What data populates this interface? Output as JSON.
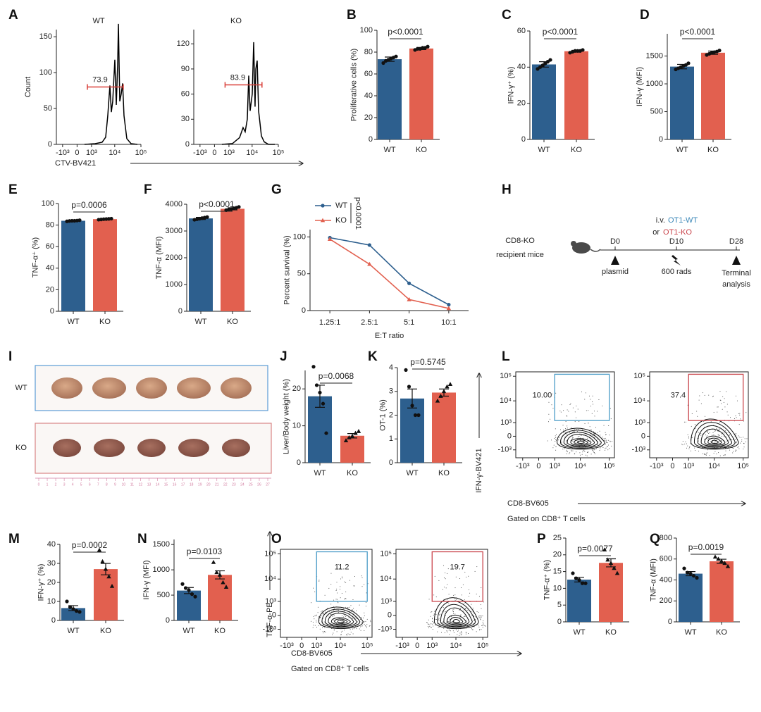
{
  "chart_data": [
    {
      "panel": "A",
      "type": "flow-histogram",
      "ylabel": "Count",
      "xlabel": "CTV-BV421",
      "color": "#000000",
      "gate_color": "#d9403a",
      "xlim": [
        -2000,
        100000
      ],
      "xticks": [
        {
          "value": -1000,
          "label": "-10³"
        },
        0,
        {
          "value": 1000,
          "label": "10³"
        },
        {
          "value": 10000,
          "label": "10⁴"
        },
        {
          "value": 100000,
          "label": "10⁵"
        }
      ],
      "plots": [
        {
          "title": "WT",
          "x": [
            360,
            1500,
            3100,
            4350,
            5300,
            6450,
            7350,
            8350,
            10100,
            11500,
            13000,
            13900,
            15700,
            17800,
            20200,
            22800,
            29200,
            42400,
            73600
          ],
          "values": [
            0,
            1,
            3,
            10,
            40,
            82,
            45,
            60,
            118,
            55,
            110,
            168,
            60,
            70,
            85,
            40,
            8,
            1,
            0
          ],
          "ylim": [
            0,
            160
          ],
          "yticks": [
            0,
            50,
            100,
            150
          ],
          "gate_x": [
            575,
            21400
          ],
          "gate_y": 80,
          "gate_percent": 73.9
        },
        {
          "title": "KO",
          "x": [
            360,
            1500,
            3100,
            4350,
            5300,
            6450,
            7350,
            8350,
            10100,
            11500,
            13000,
            13900,
            15700,
            17800,
            20200,
            22800,
            29200,
            42400,
            73600
          ],
          "values": [
            0,
            1,
            8,
            20,
            15,
            30,
            82,
            40,
            60,
            122,
            45,
            90,
            100,
            40,
            25,
            10,
            3,
            0,
            0
          ],
          "ylim": [
            0,
            137
          ],
          "yticks": [
            0,
            30,
            60,
            90,
            120
          ],
          "gate_x": [
            600,
            24000
          ],
          "gate_y": 71,
          "gate_percent": 83.9
        }
      ]
    },
    {
      "panel": "B",
      "type": "bar",
      "ylabel": "Proliferative cells (%)",
      "annotation": "p<0.0001",
      "categories": [
        "WT",
        "KO"
      ],
      "values": [
        73.5,
        83.3
      ],
      "errors": [
        2,
        1
      ],
      "points": [
        [
          70,
          72,
          73,
          74,
          75,
          76
        ],
        [
          82,
          83,
          83,
          84,
          84,
          85
        ]
      ],
      "colors": [
        "#2d5f8e",
        "#e2604f"
      ],
      "markers": [
        "circle",
        "circle"
      ],
      "ylim": [
        0,
        100
      ],
      "yticks": [
        0,
        20,
        40,
        60,
        80,
        100
      ]
    },
    {
      "panel": "C",
      "type": "bar",
      "ylabel": "IFN-γ⁺ (%)",
      "annotation": "p<0.0001",
      "categories": [
        "WT",
        "KO"
      ],
      "values": [
        41.5,
        48.8
      ],
      "errors": [
        1.5,
        0.5
      ],
      "points": [
        [
          39,
          40,
          41,
          42,
          43,
          44
        ],
        [
          48,
          48.5,
          49,
          49,
          49,
          49.5
        ]
      ],
      "colors": [
        "#2d5f8e",
        "#e2604f"
      ],
      "markers": [
        "circle",
        "circle"
      ],
      "ylim": [
        0,
        60
      ],
      "yticks": [
        0,
        20,
        40,
        60
      ]
    },
    {
      "panel": "D",
      "type": "bar",
      "ylabel": "IFN-γ (MFI)",
      "annotation": "p<0.0001",
      "categories": [
        "WT",
        "KO"
      ],
      "values": [
        1310,
        1560
      ],
      "errors": [
        40,
        30
      ],
      "points": [
        [
          1260,
          1280,
          1300,
          1320,
          1340,
          1370
        ],
        [
          1520,
          1540,
          1560,
          1570,
          1580,
          1600
        ]
      ],
      "colors": [
        "#2d5f8e",
        "#e2604f"
      ],
      "markers": [
        "circle",
        "circle"
      ],
      "ylim": [
        0,
        1900
      ],
      "yticks": [
        0,
        500,
        1000,
        1500
      ]
    },
    {
      "panel": "E",
      "type": "bar",
      "ylabel": "TNF-α⁺ (%)",
      "annotation": "p=0.0006",
      "categories": [
        "WT",
        "KO"
      ],
      "values": [
        84,
        85.5
      ],
      "errors": [
        0.5,
        0.5
      ],
      "points": [
        [
          83.5,
          83.8,
          84,
          84,
          84.2,
          84.5
        ],
        [
          85,
          85.2,
          85.5,
          85.6,
          85.8,
          86
        ]
      ],
      "colors": [
        "#2d5f8e",
        "#e2604f"
      ],
      "markers": [
        "circle",
        "circle"
      ],
      "ylim": [
        0,
        100
      ],
      "yticks": [
        0,
        20,
        40,
        60,
        80,
        100
      ]
    },
    {
      "panel": "F",
      "type": "bar",
      "ylabel": "TNF-α (MFI)",
      "annotation": "p<0.0001",
      "categories": [
        "WT",
        "KO"
      ],
      "values": [
        3470,
        3830
      ],
      "errors": [
        40,
        40
      ],
      "points": [
        [
          3420,
          3440,
          3460,
          3480,
          3500,
          3520
        ],
        [
          3780,
          3800,
          3820,
          3850,
          3870,
          3900
        ]
      ],
      "colors": [
        "#2d5f8e",
        "#e2604f"
      ],
      "markers": [
        "circle",
        "circle"
      ],
      "ylim": [
        0,
        4000
      ],
      "yticks": [
        0,
        1000,
        2000,
        3000,
        4000
      ]
    },
    {
      "panel": "G",
      "type": "line",
      "ylabel": "Percent survival (%)",
      "xlabel": "E:T ratio",
      "annotation": "p<0.0001",
      "categories": [
        "1.25:1",
        "2.5:1",
        "5:1",
        "10:1"
      ],
      "series": [
        {
          "name": "WT",
          "color": "#2d5f8e",
          "marker": "circle",
          "values": [
            99,
            89,
            37,
            8
          ]
        },
        {
          "name": "KO",
          "color": "#e2604f",
          "marker": "triangle",
          "values": [
            97,
            63,
            15,
            3
          ]
        }
      ],
      "ylim": [
        0,
        110
      ],
      "yticks": [
        0,
        50,
        100
      ]
    },
    {
      "panel": "J",
      "type": "bar",
      "ylabel": "Liver/Body weight (%)",
      "annotation": "p=0.0068",
      "categories": [
        "WT",
        "KO"
      ],
      "values": [
        18,
        7.3
      ],
      "errors": [
        3,
        0.6
      ],
      "points": [
        [
          26,
          21,
          19,
          16,
          8
        ],
        [
          6,
          6.8,
          7.2,
          8,
          8.5
        ]
      ],
      "colors": [
        "#2d5f8e",
        "#e2604f"
      ],
      "markers": [
        "circle",
        "triangle"
      ],
      "ylim": [
        0,
        25
      ],
      "yticks": [
        0,
        10,
        20
      ]
    },
    {
      "panel": "K",
      "type": "bar",
      "ylabel": "OT-1 (%)",
      "annotation": "p=0.5745",
      "categories": [
        "WT",
        "KO"
      ],
      "values": [
        2.7,
        2.95
      ],
      "errors": [
        0.4,
        0.15
      ],
      "points": [
        [
          3.9,
          3.2,
          2.4,
          2,
          2
        ],
        [
          2.6,
          2.8,
          3,
          3.2,
          3.3
        ]
      ],
      "colors": [
        "#2d5f8e",
        "#e2604f"
      ],
      "markers": [
        "circle",
        "triangle"
      ],
      "ylim": [
        0,
        4
      ],
      "yticks": [
        0,
        1,
        2,
        3,
        4
      ]
    },
    {
      "panel": "L",
      "type": "flow-contour",
      "ylabel": "IFN-γ-BV421",
      "xlabel": "CD8-BV605",
      "note": "Gated on CD8⁺ T cells",
      "xlim": [
        -2000,
        150000
      ],
      "ylim": [
        -2500,
        150000
      ],
      "xticks": [
        {
          "value": -1000,
          "label": "-10³"
        },
        0,
        {
          "value": 1000,
          "label": "10³"
        },
        {
          "value": 10000,
          "label": "10⁴"
        },
        {
          "value": 100000,
          "label": "10⁵"
        }
      ],
      "yticks": [
        {
          "value": -1000,
          "label": "-10³"
        },
        0,
        {
          "value": 1000,
          "label": "10³"
        },
        {
          "value": 10000,
          "label": "10⁴"
        },
        {
          "value": 100000,
          "label": "10⁵"
        }
      ],
      "plots": [
        {
          "gate_x": [
            1000,
            100000
          ],
          "gate_y": [
            1300,
            120000
          ],
          "gate_percent": {
            "value": 10,
            "label": "10.00"
          },
          "gate_color": "#4a9cc7"
        },
        {
          "gate_x": [
            1000,
            100000
          ],
          "gate_y": [
            1300,
            120000
          ],
          "gate_percent": 37.4,
          "gate_color": "#c9434a"
        }
      ]
    },
    {
      "panel": "M",
      "type": "bar",
      "ylabel": "IFN-γ⁺ (%)",
      "annotation": "p=0.0002",
      "categories": [
        "WT",
        "KO"
      ],
      "values": [
        6.5,
        27
      ],
      "errors": [
        1.3,
        3
      ],
      "points": [
        [
          10,
          7,
          6,
          5,
          4.5
        ],
        [
          37,
          31,
          27,
          23,
          18
        ]
      ],
      "colors": [
        "#2d5f8e",
        "#e2604f"
      ],
      "markers": [
        "circle",
        "triangle"
      ],
      "ylim": [
        0,
        40
      ],
      "yticks": [
        0,
        10,
        20,
        30,
        40
      ]
    },
    {
      "panel": "N",
      "type": "bar",
      "ylabel": "IFN-γ (MFI)",
      "annotation": "p=0.0103",
      "categories": [
        "WT",
        "KO"
      ],
      "values": [
        590,
        900
      ],
      "errors": [
        60,
        80
      ],
      "points": [
        [
          720,
          640,
          600,
          520,
          470
        ],
        [
          1150,
          950,
          900,
          750,
          660
        ]
      ],
      "colors": [
        "#2d5f8e",
        "#e2604f"
      ],
      "markers": [
        "circle",
        "triangle"
      ],
      "ylim": [
        0,
        1600
      ],
      "yticks": [
        0,
        500,
        1000,
        1500
      ]
    },
    {
      "panel": "O",
      "type": "flow-contour",
      "ylabel": "TNF-α-PE",
      "xlabel": "CD8-BV605",
      "note": "Gated on CD8⁺ T cells",
      "xlim": [
        -2000,
        150000
      ],
      "ylim": [
        -2500,
        150000
      ],
      "xticks": [
        {
          "value": -1000,
          "label": "-10³"
        },
        0,
        {
          "value": 1000,
          "label": "10³"
        },
        {
          "value": 10000,
          "label": "10⁴"
        },
        {
          "value": 100000,
          "label": "10⁵"
        }
      ],
      "yticks": [
        {
          "value": -1000,
          "label": "-10³"
        },
        0,
        {
          "value": 1000,
          "label": "10³"
        },
        {
          "value": 10000,
          "label": "10⁴"
        },
        {
          "value": 100000,
          "label": "10⁵"
        }
      ],
      "plots": [
        {
          "gate_x": [
            1000,
            100000
          ],
          "gate_y": [
            1000,
            120000
          ],
          "gate_percent": 11.2,
          "gate_color": "#4a9cc7"
        },
        {
          "gate_x": [
            1000,
            100000
          ],
          "gate_y": [
            1000,
            120000
          ],
          "gate_percent": 19.7,
          "gate_color": "#c9434a"
        }
      ]
    },
    {
      "panel": "P",
      "type": "bar",
      "ylabel": "TNF-α⁺ (%)",
      "annotation": "p=0.0077",
      "categories": [
        "WT",
        "KO"
      ],
      "values": [
        12.6,
        17.6
      ],
      "errors": [
        0.7,
        1.2
      ],
      "points": [
        [
          14.5,
          13,
          12.5,
          11.5,
          11.5
        ],
        [
          21.5,
          18.5,
          17.5,
          16,
          14.5
        ]
      ],
      "colors": [
        "#2d5f8e",
        "#e2604f"
      ],
      "markers": [
        "circle",
        "triangle"
      ],
      "ylim": [
        0,
        25
      ],
      "yticks": [
        0,
        5,
        10,
        15,
        20,
        25
      ]
    },
    {
      "panel": "Q",
      "type": "bar",
      "ylabel": "TNF-α (MFI)",
      "annotation": "p=0.0019",
      "categories": [
        "WT",
        "KO"
      ],
      "values": [
        460,
        578
      ],
      "errors": [
        20,
        20
      ],
      "points": [
        [
          510,
          470,
          460,
          440,
          420
        ],
        [
          620,
          600,
          580,
          560,
          530
        ]
      ],
      "colors": [
        "#2d5f8e",
        "#e2604f"
      ],
      "markers": [
        "circle",
        "triangle"
      ],
      "ylim": [
        0,
        800
      ],
      "yticks": [
        0,
        200,
        400,
        600,
        800
      ]
    }
  ],
  "schematic": {
    "panel": "H",
    "recipient": [
      "CD8-KO",
      "recipient mice"
    ],
    "route": "i.v.",
    "groups": [
      "OT1-WT",
      "OT1-KO"
    ],
    "group_colors": [
      "#3a87b8",
      "#c9434a"
    ],
    "conjunction": "or",
    "timepoints": [
      {
        "day": "D0",
        "event": [
          "plasmid"
        ]
      },
      {
        "day": "D10",
        "event": [
          "600 rads"
        ]
      },
      {
        "day": "D28",
        "event": [
          "Terminal",
          "analysis"
        ]
      }
    ]
  },
  "photo": {
    "panel": "I",
    "rows": [
      "WT",
      "KO"
    ],
    "ruler": [
      "0",
      "1",
      "2",
      "3",
      "4",
      "5",
      "6",
      "7",
      "8",
      "9",
      "10",
      "11",
      "12",
      "13",
      "14",
      "15",
      "16",
      "17",
      "18",
      "19",
      "20",
      "21",
      "22",
      "23",
      "24",
      "25",
      "26",
      "27"
    ]
  }
}
